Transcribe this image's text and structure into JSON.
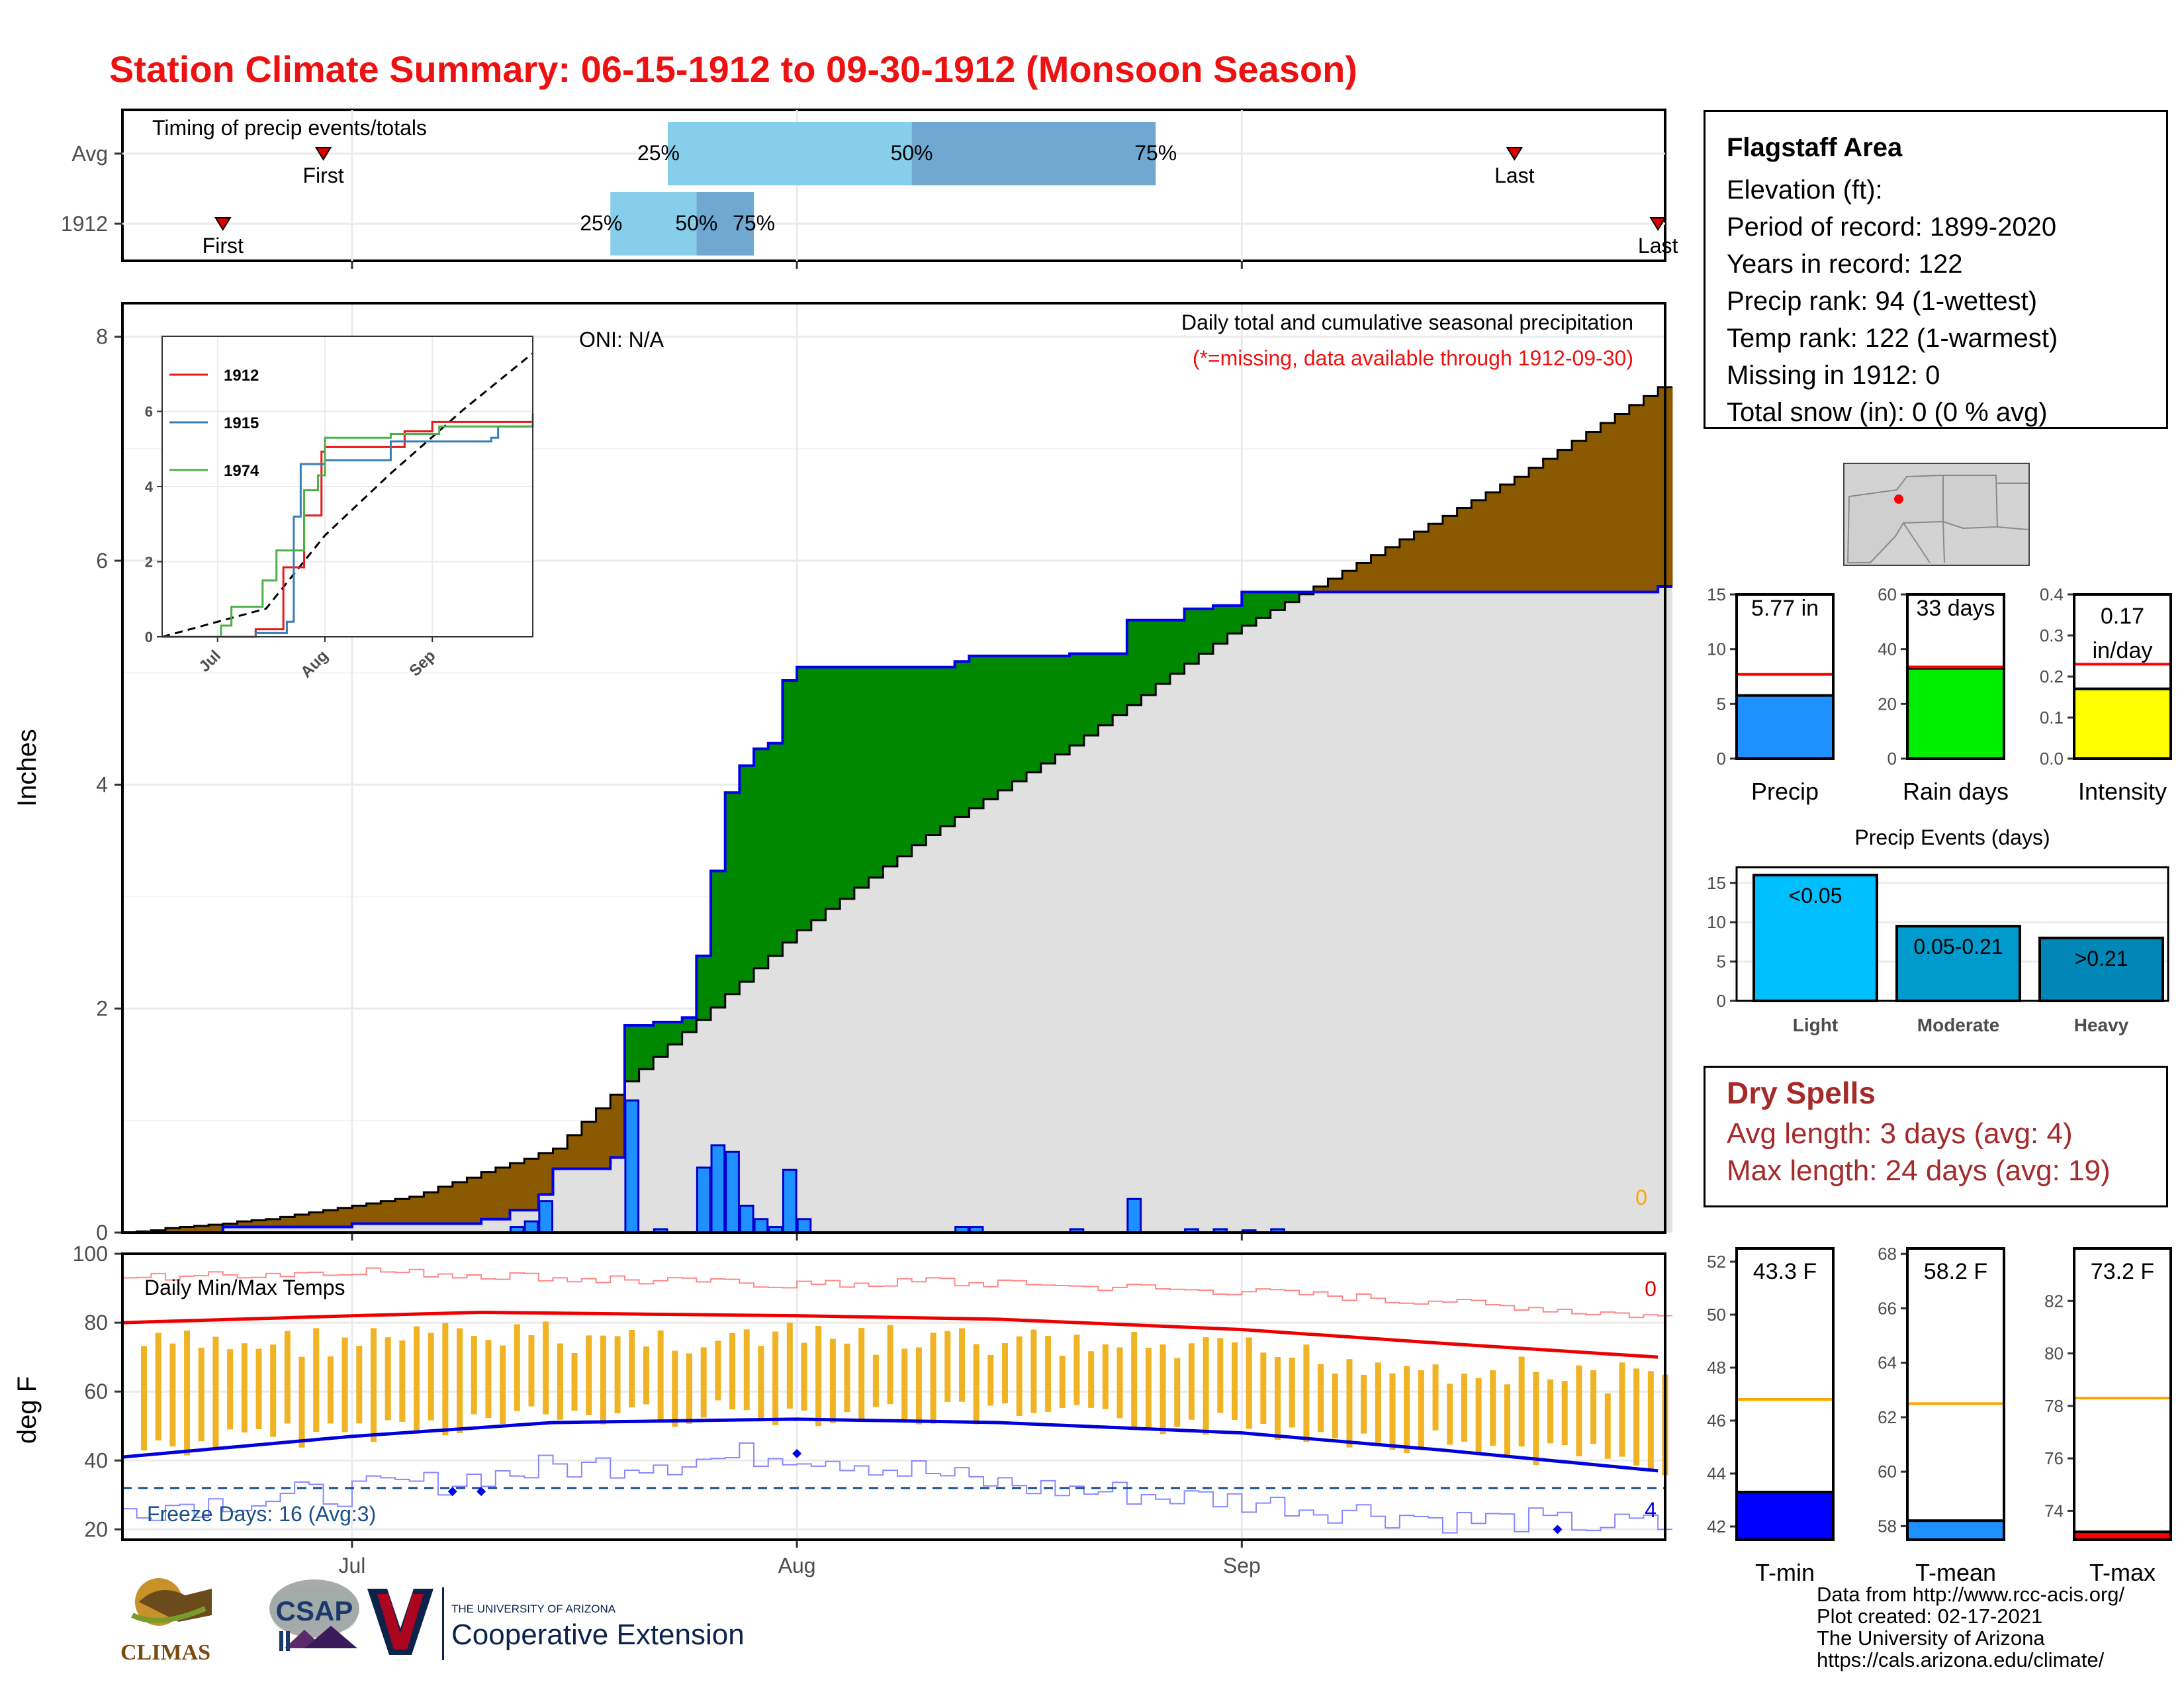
{
  "title": "Station Climate Summary: 06-15-1912 to 09-30-1912 (Monsoon Season)",
  "timing_panel": {
    "label": "Timing of precip events/totals",
    "rows": [
      "Avg",
      "1912"
    ],
    "avg": {
      "first": "First",
      "last": "Last",
      "p25": "25%",
      "p50": "50%",
      "p75": "75%"
    },
    "y1912": {
      "first": "First",
      "last": "Last",
      "p25": "25%",
      "p50": "50%",
      "p75": "75%"
    }
  },
  "main_panel": {
    "ylabel": "Inches",
    "oni": "ONI: N/A",
    "caption": "Daily total and cumulative seasonal precipitation",
    "note": "(*=missing, data available through 1912-09-30)",
    "missing_count": "0",
    "yticks": [
      "0",
      "2",
      "4",
      "6",
      "8"
    ]
  },
  "inset": {
    "legend": [
      "1912",
      "1915",
      "1974"
    ],
    "colors": [
      "#e41a1c",
      "#377eb8",
      "#4daf4a"
    ],
    "yticks": [
      "0",
      "2",
      "4",
      "6"
    ],
    "xticks": [
      "Jul",
      "Aug",
      "Sep"
    ]
  },
  "temp_panel": {
    "ylabel": "deg F",
    "label": "Daily Min/Max Temps",
    "freeze": "Freeze Days: 16 (Avg:3)",
    "missing_top": "0",
    "missing_bottom": "4",
    "yticks": [
      "20",
      "40",
      "60",
      "80",
      "100"
    ],
    "xticks": [
      "Jul",
      "Aug",
      "Sep"
    ]
  },
  "station": {
    "name": "Flagstaff Area",
    "lines": [
      "Elevation (ft):",
      "Period of record: 1899-2020",
      "Years in record: 122",
      "Precip rank: 94 (1-wettest)",
      "Temp rank: 122 (1-warmest)",
      "Missing in 1912: 0",
      "Total snow (in): 0 (0 % avg)"
    ]
  },
  "mini_bars": {
    "precip": {
      "label": "Precip",
      "value_text": "5.77 in",
      "value": 5.77,
      "avg": 7.7,
      "ymax": 15,
      "ticks": [
        "0",
        "5",
        "10",
        "15"
      ],
      "color": "#1e90ff"
    },
    "raindays": {
      "label": "Rain days",
      "value_text": "33 days",
      "value": 33,
      "avg": 33.5,
      "ymax": 60,
      "ticks": [
        "0",
        "20",
        "40",
        "60"
      ],
      "color": "#00ee00"
    },
    "intensity": {
      "label": "Intensity",
      "value_text": "0.17",
      "value_text2": "in/day",
      "value": 0.17,
      "avg": 0.23,
      "ymax": 0.4,
      "ticks": [
        "0.0",
        "0.1",
        "0.2",
        "0.3",
        "0.4"
      ],
      "color": "#ffff00"
    }
  },
  "precip_events": {
    "title": "Precip Events (days)",
    "categories": [
      "Light",
      "Moderate",
      "Heavy"
    ],
    "bin_labels": [
      "<0.05",
      "0.05-0.21",
      ">0.21"
    ],
    "values": [
      16,
      9.5,
      8
    ],
    "colors": [
      "#00bfff",
      "#009acd",
      "#0087b8"
    ],
    "ticks": [
      "0",
      "5",
      "10",
      "15"
    ]
  },
  "dry_spells": {
    "title": "Dry Spells",
    "avg": "Avg length: 3 days (avg: 4)",
    "max": "Max length: 24 days (avg: 19)"
  },
  "temp_bars": {
    "tmin": {
      "label": "T-min",
      "value_text": "43.3 F",
      "value": 43.3,
      "avg": 46.8,
      "ymin": 41.5,
      "ymax": 52.5,
      "ticks": [
        "42",
        "44",
        "46",
        "48",
        "50",
        "52"
      ],
      "color": "#0000ff"
    },
    "tmean": {
      "label": "T-mean",
      "value_text": "58.2 F",
      "value": 58.2,
      "avg": 62.5,
      "ymin": 57.5,
      "ymax": 68.2,
      "ticks": [
        "58",
        "60",
        "62",
        "64",
        "66",
        "68"
      ],
      "color": "#1e90ff"
    },
    "tmax": {
      "label": "T-max",
      "value_text": "73.2 F",
      "value": 73.2,
      "avg": 78.3,
      "ymin": 72.9,
      "ymax": 84,
      "ticks": [
        "74",
        "76",
        "78",
        "80",
        "82"
      ],
      "color": "#ff0000"
    }
  },
  "credits": [
    "Data from http://www.rcc-acis.org/",
    "Plot created: 02-17-2021",
    "The University of Arizona",
    "https://cals.arizona.edu/climate/"
  ],
  "logos": {
    "climas": "CLIMAS",
    "csap": "CSAP",
    "ua_small": "THE UNIVERSITY OF ARIZONA",
    "ua_big": "Cooperative Extension"
  },
  "chart_data": [
    {
      "type": "timing",
      "rows": [
        {
          "name": "Avg",
          "first": "1912-06-29",
          "p25": "1912-07-23",
          "p50": "1912-08-09",
          "p75": "1912-08-26",
          "last": "1912-09-20"
        },
        {
          "name": "1912",
          "first": "1912-06-22",
          "p25": "1912-07-19",
          "p50": "1912-07-25",
          "p75": "1912-07-29",
          "last": "1912-09-30"
        }
      ]
    },
    {
      "type": "area",
      "caption": "Daily total and cumulative seasonal precipitation",
      "ylabel": "Inches",
      "ylim": [
        0,
        8.3
      ],
      "x_range": [
        "1912-06-15",
        "1912-09-30"
      ],
      "cumulative_1912": [
        [
          "1912-06-15",
          0.0
        ],
        [
          "1912-06-22",
          0.05
        ],
        [
          "1912-07-01",
          0.08
        ],
        [
          "1912-07-10",
          0.12
        ],
        [
          "1912-07-12",
          0.2
        ],
        [
          "1912-07-14",
          0.34
        ],
        [
          "1912-07-15",
          0.57
        ],
        [
          "1912-07-19",
          0.67
        ],
        [
          "1912-07-20",
          1.85
        ],
        [
          "1912-07-22",
          1.88
        ],
        [
          "1912-07-24",
          1.92
        ],
        [
          "1912-07-25",
          2.47
        ],
        [
          "1912-07-26",
          3.23
        ],
        [
          "1912-07-27",
          3.93
        ],
        [
          "1912-07-28",
          4.17
        ],
        [
          "1912-07-29",
          4.32
        ],
        [
          "1912-07-30",
          4.37
        ],
        [
          "1912-07-31",
          4.93
        ],
        [
          "1912-08-01",
          5.05
        ],
        [
          "1912-08-12",
          5.1
        ],
        [
          "1912-08-13",
          5.15
        ],
        [
          "1912-08-20",
          5.17
        ],
        [
          "1912-08-24",
          5.47
        ],
        [
          "1912-08-28",
          5.57
        ],
        [
          "1912-08-30",
          5.6
        ],
        [
          "1912-09-01",
          5.72
        ],
        [
          "1912-09-30",
          5.77
        ]
      ],
      "average_cumulative": [
        [
          "1912-06-15",
          0.0
        ],
        [
          "1912-06-25",
          0.12
        ],
        [
          "1912-07-05",
          0.32
        ],
        [
          "1912-07-15",
          0.75
        ],
        [
          "1912-07-20",
          1.35
        ],
        [
          "1912-07-25",
          1.9
        ],
        [
          "1912-08-01",
          2.7
        ],
        [
          "1912-08-10",
          3.55
        ],
        [
          "1912-08-20",
          4.35
        ],
        [
          "1912-08-31",
          5.35
        ],
        [
          "1912-09-10",
          6.05
        ],
        [
          "1912-09-20",
          6.75
        ],
        [
          "1912-09-30",
          7.55
        ]
      ],
      "daily_bars": [
        [
          "1912-07-12",
          0.05
        ],
        [
          "1912-07-13",
          0.1
        ],
        [
          "1912-07-14",
          0.28
        ],
        [
          "1912-07-20",
          1.18
        ],
        [
          "1912-07-22",
          0.03
        ],
        [
          "1912-07-25",
          0.58
        ],
        [
          "1912-07-26",
          0.78
        ],
        [
          "1912-07-27",
          0.72
        ],
        [
          "1912-07-28",
          0.24
        ],
        [
          "1912-07-29",
          0.12
        ],
        [
          "1912-07-30",
          0.05
        ],
        [
          "1912-07-31",
          0.56
        ],
        [
          "1912-08-01",
          0.12
        ],
        [
          "1912-08-12",
          0.05
        ],
        [
          "1912-08-13",
          0.05
        ],
        [
          "1912-08-20",
          0.03
        ],
        [
          "1912-08-24",
          0.3
        ],
        [
          "1912-08-28",
          0.03
        ],
        [
          "1912-08-30",
          0.03
        ],
        [
          "1912-09-01",
          0.02
        ],
        [
          "1912-09-03",
          0.03
        ]
      ]
    },
    {
      "type": "line",
      "caption": "inset cumulative comparison",
      "series": [
        {
          "name": "1912",
          "values": [
            [
              "1912-06-15",
              0
            ],
            [
              "1912-07-12",
              0.2
            ],
            [
              "1912-07-20",
              1.85
            ],
            [
              "1912-07-26",
              3.23
            ],
            [
              "1912-07-31",
              4.93
            ],
            [
              "1912-08-01",
              5.05
            ],
            [
              "1912-08-24",
              5.47
            ],
            [
              "1912-09-01",
              5.72
            ],
            [
              "1912-09-30",
              5.77
            ]
          ]
        },
        {
          "name": "1915",
          "values": [
            [
              "1912-06-15",
              0
            ],
            [
              "1912-07-12",
              0.1
            ],
            [
              "1912-07-21",
              0.4
            ],
            [
              "1912-07-23",
              3.2
            ],
            [
              "1912-07-25",
              4.6
            ],
            [
              "1912-08-01",
              4.7
            ],
            [
              "1912-08-20",
              5.2
            ],
            [
              "1912-09-18",
              5.3
            ],
            [
              "1912-09-20",
              5.6
            ],
            [
              "1912-09-30",
              5.7
            ]
          ]
        },
        {
          "name": "1974",
          "values": [
            [
              "1912-06-15",
              0
            ],
            [
              "1912-07-02",
              0.3
            ],
            [
              "1912-07-05",
              0.8
            ],
            [
              "1912-07-14",
              1.5
            ],
            [
              "1912-07-18",
              2.3
            ],
            [
              "1912-07-26",
              3.9
            ],
            [
              "1912-07-30",
              4.3
            ],
            [
              "1912-08-01",
              5.3
            ],
            [
              "1912-08-20",
              5.4
            ],
            [
              "1912-09-03",
              5.6
            ],
            [
              "1912-09-30",
              5.95
            ]
          ]
        }
      ],
      "average": [
        [
          "1912-06-15",
          0
        ],
        [
          "1912-07-15",
          0.75
        ],
        [
          "1912-08-01",
          2.7
        ],
        [
          "1912-08-20",
          4.35
        ],
        [
          "1912-09-10",
          6.05
        ],
        [
          "1912-09-30",
          7.55
        ]
      ]
    },
    {
      "type": "bar",
      "caption": "Daily Min/Max Temps",
      "ylabel": "deg F",
      "ylim": [
        17,
        100
      ],
      "freeze_threshold": 32,
      "avg_max": [
        [
          "1912-06-15",
          80
        ],
        [
          "1912-07-01",
          82
        ],
        [
          "1912-07-10",
          83
        ],
        [
          "1912-08-01",
          82
        ],
        [
          "1912-08-15",
          81
        ],
        [
          "1912-09-01",
          78
        ],
        [
          "1912-09-15",
          74
        ],
        [
          "1912-09-30",
          70
        ]
      ],
      "avg_min": [
        [
          "1912-06-15",
          41
        ],
        [
          "1912-07-01",
          47
        ],
        [
          "1912-07-15",
          51
        ],
        [
          "1912-08-01",
          52
        ],
        [
          "1912-08-15",
          51
        ],
        [
          "1912-09-01",
          48
        ],
        [
          "1912-09-15",
          43
        ],
        [
          "1912-09-30",
          37
        ]
      ],
      "record_max": [
        [
          "1912-06-15",
          93
        ],
        [
          "1912-07-01",
          95
        ],
        [
          "1912-07-15",
          93
        ],
        [
          "1912-08-01",
          91
        ],
        [
          "1912-08-10",
          92
        ],
        [
          "1912-09-01",
          89
        ],
        [
          "1912-09-15",
          86
        ],
        [
          "1912-09-30",
          82
        ]
      ],
      "record_min": [
        [
          "1912-06-15",
          26
        ],
        [
          "1912-07-01",
          31
        ],
        [
          "1912-07-15",
          38
        ],
        [
          "1912-08-01",
          42
        ],
        [
          "1912-08-15",
          33
        ],
        [
          "1912-09-01",
          28
        ],
        [
          "1912-09-15",
          23
        ],
        [
          "1912-09-30",
          21
        ]
      ]
    }
  ]
}
